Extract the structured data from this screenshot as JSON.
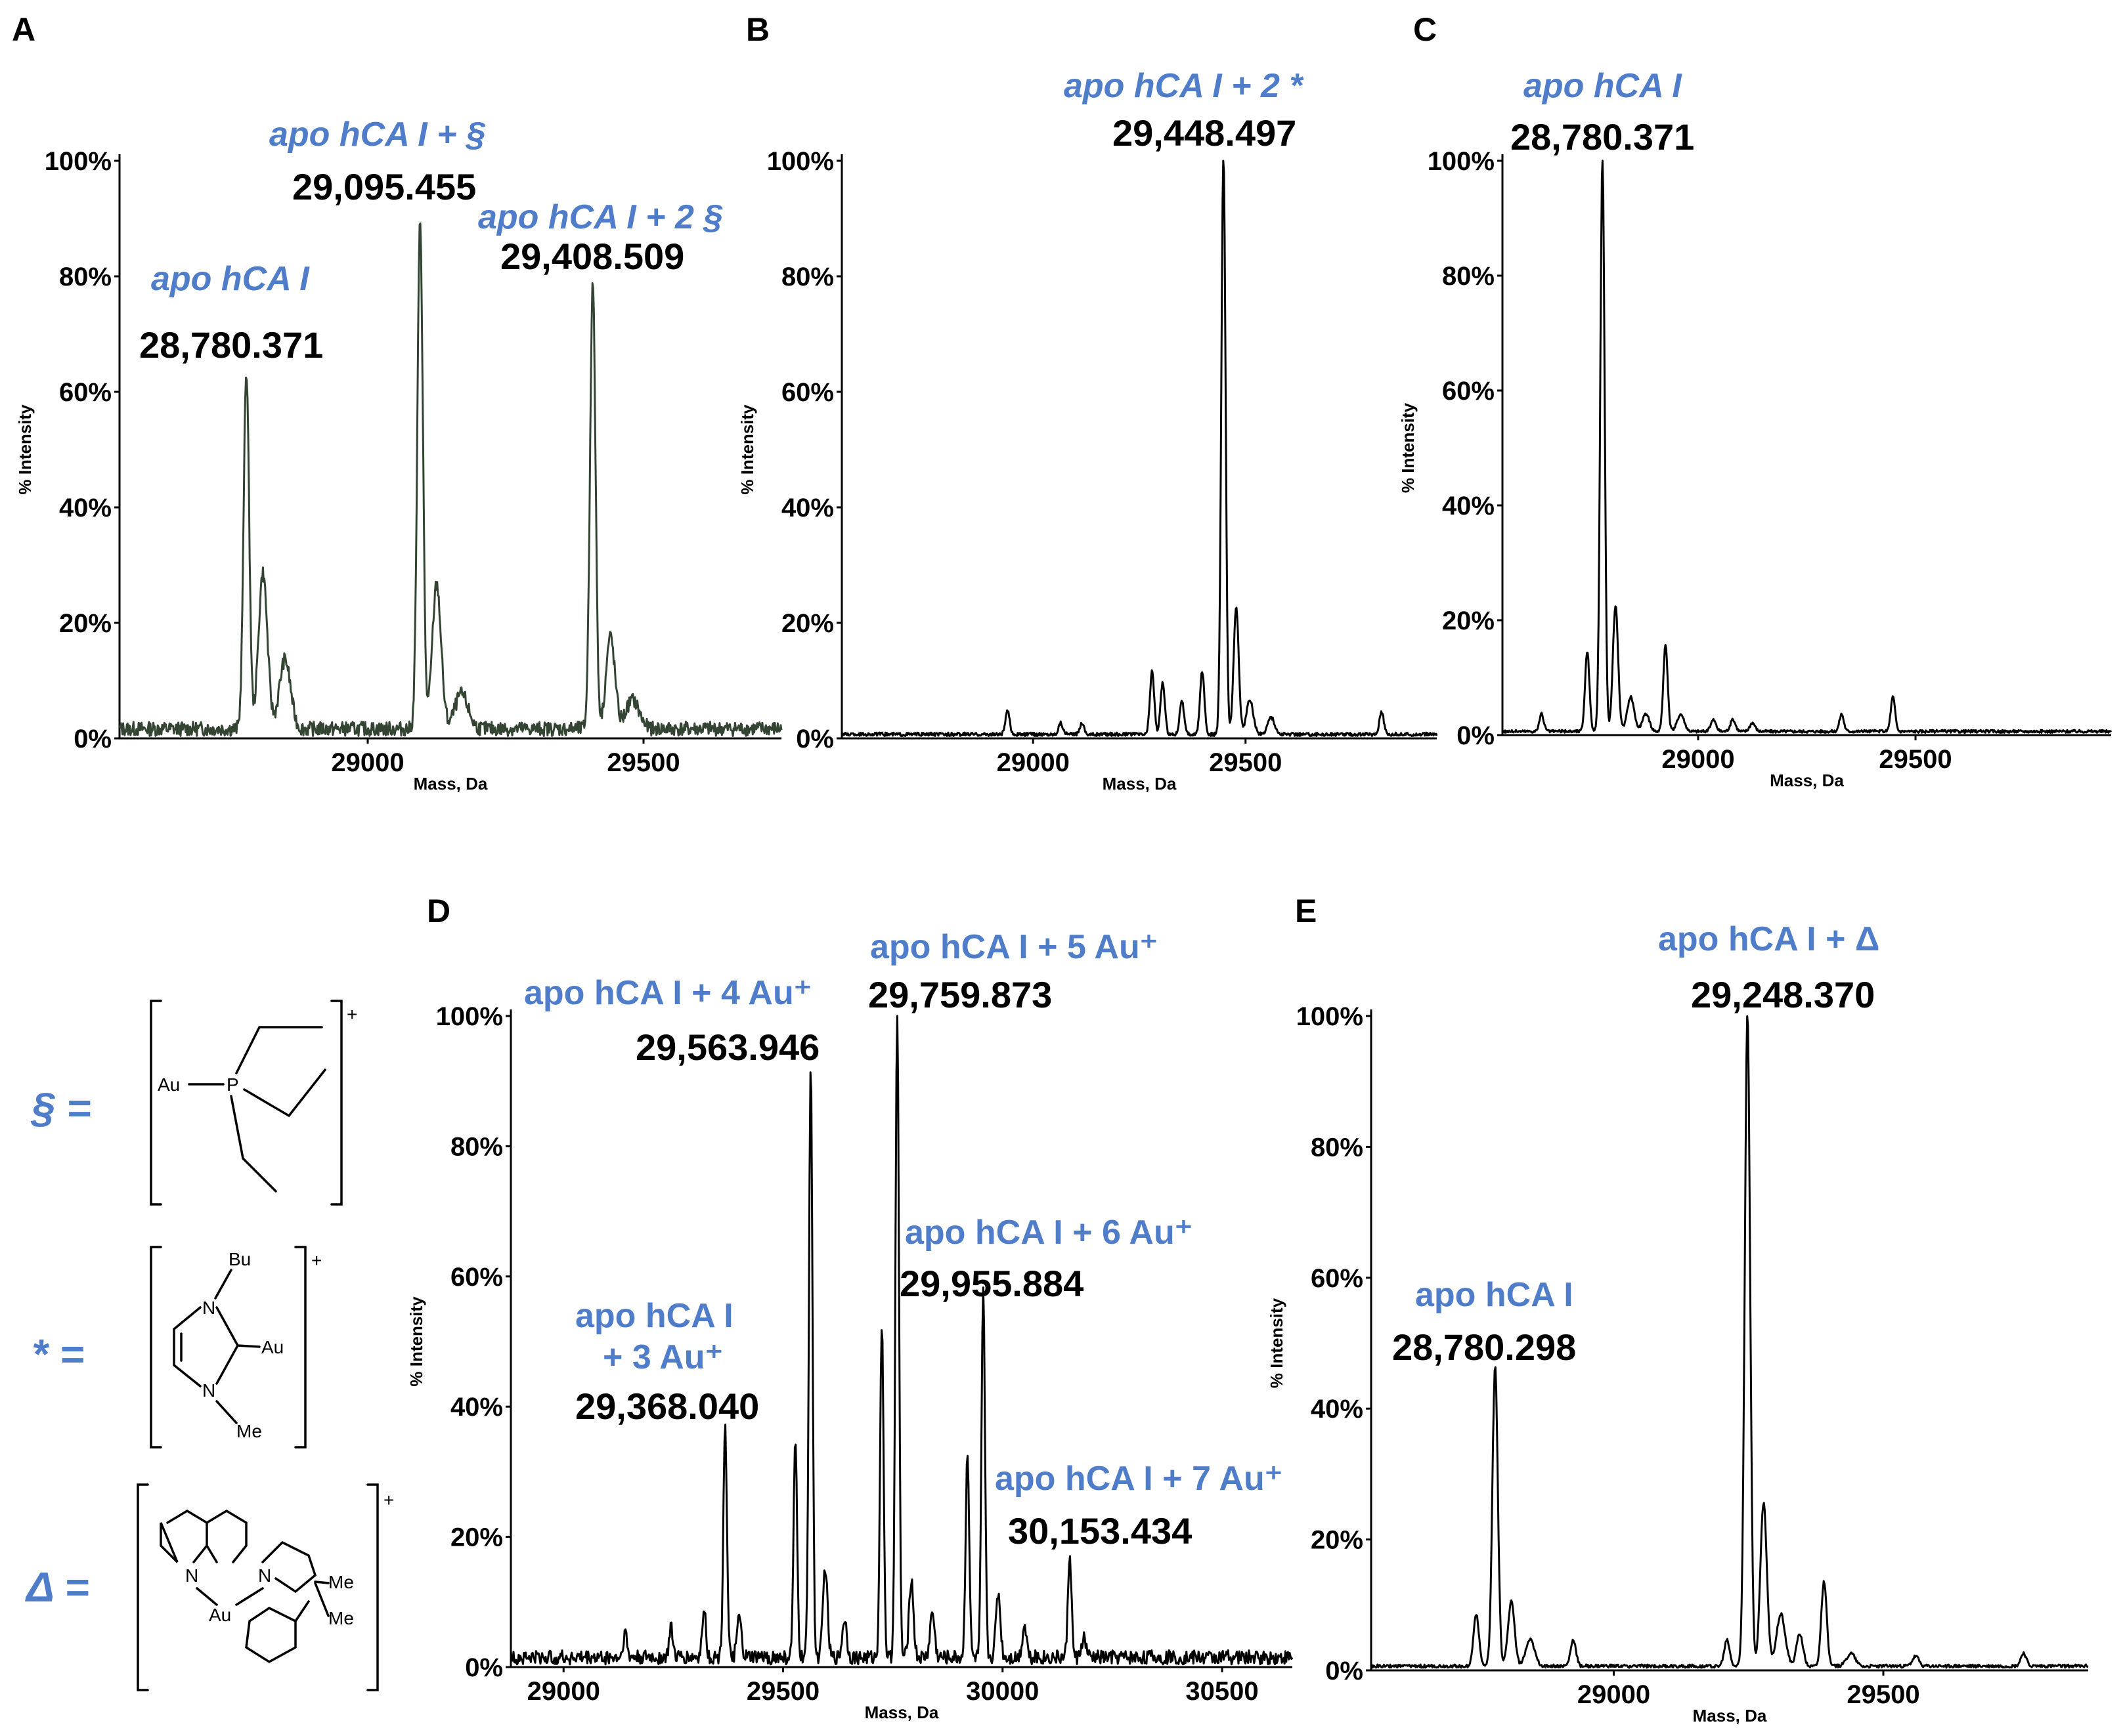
{
  "chart_data": [
    {
      "id": "A",
      "panel_label": "A",
      "type": "line",
      "xlabel": "Mass, Da",
      "ylabel": "% Intensity",
      "xlim": [
        28550,
        29750
      ],
      "ylim": [
        0,
        100
      ],
      "xticks": [
        29000,
        29500
      ],
      "xtick_labels": [
        "29000",
        "29500"
      ],
      "yticks": [
        0,
        20,
        40,
        60,
        80,
        100
      ],
      "ytick_labels": [
        "0%",
        "20%",
        "40%",
        "60%",
        "80%",
        "100%"
      ],
      "peaks": [
        {
          "x": 28780,
          "y": 62,
          "w": 5
        },
        {
          "x": 28810,
          "y": 27,
          "w": 8
        },
        {
          "x": 28850,
          "y": 12,
          "w": 10
        },
        {
          "x": 29095,
          "y": 88,
          "w": 5
        },
        {
          "x": 29125,
          "y": 25,
          "w": 8
        },
        {
          "x": 29170,
          "y": 6,
          "w": 12
        },
        {
          "x": 29408,
          "y": 77,
          "w": 5
        },
        {
          "x": 29440,
          "y": 16,
          "w": 8
        },
        {
          "x": 29480,
          "y": 5,
          "w": 12
        }
      ],
      "noise": 2.5,
      "annotations": [
        {
          "name": "apo hCA I",
          "mass": "28,780.371"
        },
        {
          "name": "apo hCA I + §",
          "mass": "29,095.455"
        },
        {
          "name": "apo hCA I + 2 §",
          "mass": "29,408.509"
        }
      ]
    },
    {
      "id": "B",
      "panel_label": "B",
      "type": "line",
      "xlabel": "Mass, Da",
      "ylabel": "% Intensity",
      "xlim": [
        28550,
        29950
      ],
      "ylim": [
        0,
        100
      ],
      "xticks": [
        29000,
        29500
      ],
      "xtick_labels": [
        "29000",
        "29500"
      ],
      "yticks": [
        0,
        20,
        40,
        60,
        80,
        100
      ],
      "ytick_labels": [
        "0%",
        "20%",
        "40%",
        "60%",
        "80%",
        "100%"
      ],
      "peaks": [
        {
          "x": 28940,
          "y": 4,
          "w": 5
        },
        {
          "x": 29065,
          "y": 2,
          "w": 5
        },
        {
          "x": 29115,
          "y": 2,
          "w": 5
        },
        {
          "x": 29280,
          "y": 11,
          "w": 5
        },
        {
          "x": 29305,
          "y": 9,
          "w": 5
        },
        {
          "x": 29350,
          "y": 6,
          "w": 5
        },
        {
          "x": 29398,
          "y": 11,
          "w": 5
        },
        {
          "x": 29448,
          "y": 100,
          "w": 5
        },
        {
          "x": 29478,
          "y": 22,
          "w": 6
        },
        {
          "x": 29510,
          "y": 6,
          "w": 8
        },
        {
          "x": 29560,
          "y": 3,
          "w": 8
        },
        {
          "x": 29820,
          "y": 4,
          "w": 5
        }
      ],
      "noise": 0.6,
      "annotations": [
        {
          "name": "apo hCA I + 2 *",
          "mass": "29,448.497"
        }
      ]
    },
    {
      "id": "C",
      "panel_label": "C",
      "type": "line",
      "xlabel": "Mass, Da",
      "ylabel": "% Intensity",
      "xlim": [
        28550,
        29950
      ],
      "ylim": [
        0,
        100
      ],
      "xticks": [
        29000,
        29500
      ],
      "xtick_labels": [
        "29000",
        "29500"
      ],
      "yticks": [
        0,
        20,
        40,
        60,
        80,
        100
      ],
      "ytick_labels": [
        "0%",
        "20%",
        "40%",
        "60%",
        "80%",
        "100%"
      ],
      "peaks": [
        {
          "x": 28640,
          "y": 3,
          "w": 5
        },
        {
          "x": 28745,
          "y": 14,
          "w": 5
        },
        {
          "x": 28780,
          "y": 100,
          "w": 5
        },
        {
          "x": 28810,
          "y": 22,
          "w": 6
        },
        {
          "x": 28845,
          "y": 6,
          "w": 8
        },
        {
          "x": 28880,
          "y": 3,
          "w": 8
        },
        {
          "x": 28925,
          "y": 15,
          "w": 5
        },
        {
          "x": 28960,
          "y": 3,
          "w": 8
        },
        {
          "x": 29035,
          "y": 2,
          "w": 6
        },
        {
          "x": 29080,
          "y": 2,
          "w": 6
        },
        {
          "x": 29125,
          "y": 1.5,
          "w": 6
        },
        {
          "x": 29330,
          "y": 3,
          "w": 5
        },
        {
          "x": 29448,
          "y": 6,
          "w": 5
        }
      ],
      "noise": 0.5,
      "annotations": [
        {
          "name": "apo hCA I",
          "mass": "28,780.371"
        }
      ]
    },
    {
      "id": "D",
      "panel_label": "D",
      "type": "line",
      "xlabel": "Mass, Da",
      "ylabel": "% Intensity",
      "xlim": [
        28880,
        30660
      ],
      "ylim": [
        0,
        100
      ],
      "xticks": [
        29000,
        29500,
        30000,
        30500
      ],
      "xtick_labels": [
        "29000",
        "29500",
        "30000",
        "30500"
      ],
      "yticks": [
        0,
        20,
        40,
        60,
        80,
        100
      ],
      "ytick_labels": [
        "0%",
        "20%",
        "40%",
        "60%",
        "80%",
        "100%"
      ],
      "peaks": [
        {
          "x": 29140,
          "y": 4,
          "w": 4
        },
        {
          "x": 29245,
          "y": 5,
          "w": 4
        },
        {
          "x": 29320,
          "y": 8,
          "w": 4
        },
        {
          "x": 29368,
          "y": 36,
          "w": 4
        },
        {
          "x": 29400,
          "y": 6,
          "w": 5
        },
        {
          "x": 29528,
          "y": 33,
          "w": 4
        },
        {
          "x": 29563,
          "y": 92,
          "w": 4
        },
        {
          "x": 29596,
          "y": 14,
          "w": 5
        },
        {
          "x": 29640,
          "y": 6,
          "w": 5
        },
        {
          "x": 29725,
          "y": 51,
          "w": 4
        },
        {
          "x": 29760,
          "y": 100,
          "w": 4
        },
        {
          "x": 29792,
          "y": 12,
          "w": 5
        },
        {
          "x": 29840,
          "y": 7,
          "w": 5
        },
        {
          "x": 29920,
          "y": 32,
          "w": 4
        },
        {
          "x": 29956,
          "y": 56,
          "w": 4
        },
        {
          "x": 29990,
          "y": 10,
          "w": 5
        },
        {
          "x": 30050,
          "y": 5,
          "w": 5
        },
        {
          "x": 30153,
          "y": 16,
          "w": 4
        },
        {
          "x": 30185,
          "y": 3,
          "w": 5
        }
      ],
      "noise": 2.2,
      "annotations": [
        {
          "name": "apo hCA I",
          "name2": "+ 3 Au⁺",
          "mass": "29,368.040"
        },
        {
          "name": "apo hCA I + 4 Au⁺",
          "mass": "29,563.946"
        },
        {
          "name": "apo hCA I + 5 Au⁺",
          "mass": "29,759.873"
        },
        {
          "name": "apo hCA I + 6 Au⁺",
          "mass": "29,955.884"
        },
        {
          "name": "apo hCA I + 7 Au⁺",
          "mass": "30,153.434"
        }
      ]
    },
    {
      "id": "E",
      "panel_label": "E",
      "type": "line",
      "xlabel": "Mass, Da",
      "ylabel": "% Intensity",
      "xlim": [
        28550,
        29880
      ],
      "ylim": [
        0,
        100
      ],
      "xticks": [
        29000,
        29500
      ],
      "xtick_labels": [
        "29000",
        "29500"
      ],
      "yticks": [
        0,
        20,
        40,
        60,
        80,
        100
      ],
      "ytick_labels": [
        "0%",
        "20%",
        "40%",
        "60%",
        "80%",
        "100%"
      ],
      "peaks": [
        {
          "x": 28745,
          "y": 8,
          "w": 5
        },
        {
          "x": 28780,
          "y": 46,
          "w": 5
        },
        {
          "x": 28810,
          "y": 10,
          "w": 6
        },
        {
          "x": 28845,
          "y": 4,
          "w": 8
        },
        {
          "x": 28925,
          "y": 4,
          "w": 5
        },
        {
          "x": 29210,
          "y": 4,
          "w": 5
        },
        {
          "x": 29248,
          "y": 100,
          "w": 5
        },
        {
          "x": 29278,
          "y": 25,
          "w": 6
        },
        {
          "x": 29310,
          "y": 8,
          "w": 8
        },
        {
          "x": 29345,
          "y": 5,
          "w": 6
        },
        {
          "x": 29390,
          "y": 13,
          "w": 5
        },
        {
          "x": 29440,
          "y": 2,
          "w": 8
        },
        {
          "x": 29560,
          "y": 1.5,
          "w": 6
        },
        {
          "x": 29760,
          "y": 2,
          "w": 5
        }
      ],
      "noise": 0.5,
      "annotations": [
        {
          "name": "apo hCA I",
          "mass": "28,780.298"
        },
        {
          "name": "apo hCA I + Δ",
          "mass": "29,248.370"
        }
      ]
    }
  ],
  "legend": {
    "section": "§ =",
    "star": "* =",
    "delta": "Δ =",
    "chem_labels": {
      "au": "Au",
      "p": "P",
      "bu": "Bu",
      "me": "Me",
      "n": "N",
      "plus": "+"
    }
  },
  "colors": {
    "accent_blue": "#4F7DC9",
    "trace": "#000000",
    "trace_A": "#334433"
  }
}
